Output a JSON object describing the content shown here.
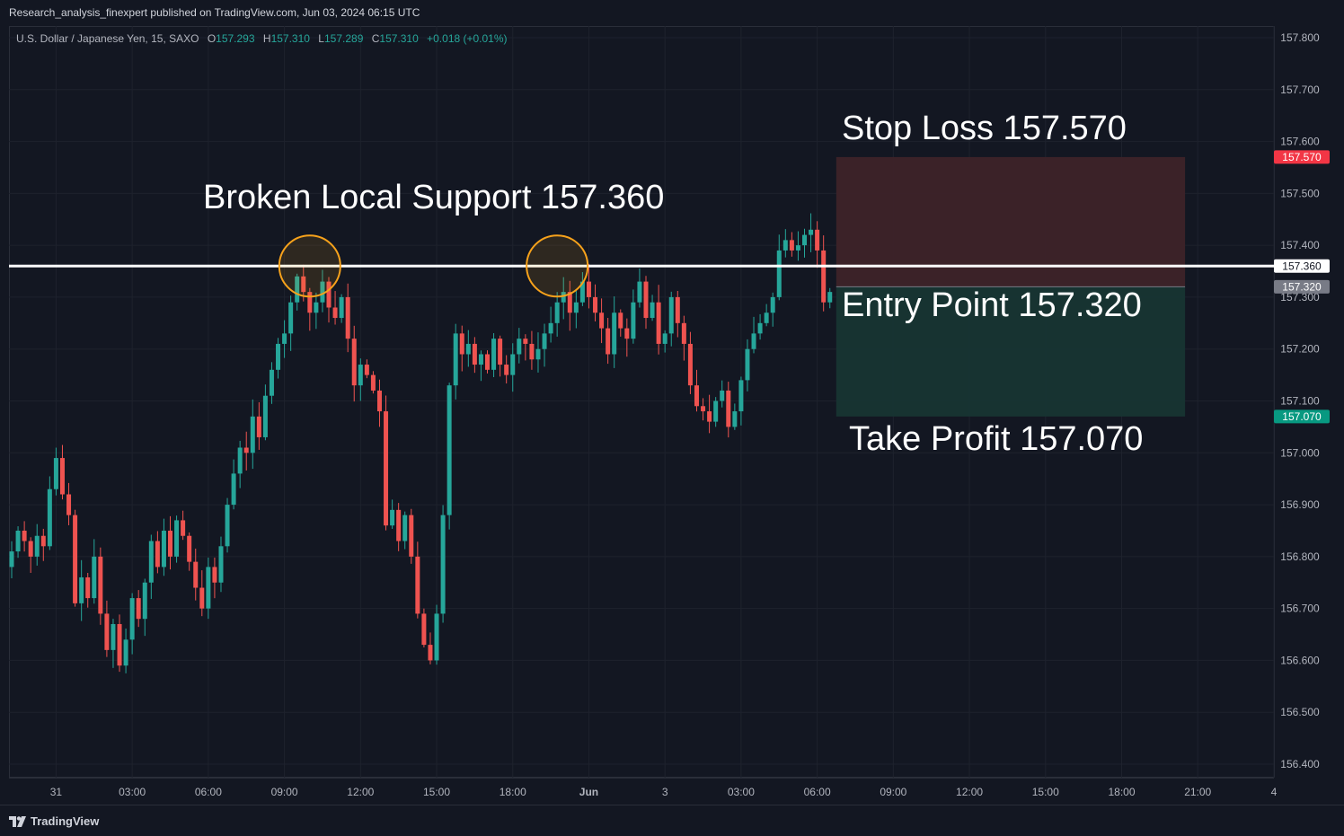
{
  "publisher": "Research_analysis_finexpert published on TradingView.com, Jun 03, 2024 06:15 UTC",
  "brand": "TradingView",
  "legend": {
    "symbol": "U.S. Dollar / Japanese Yen, 15, SAXO",
    "o_label": "O",
    "o": "157.293",
    "h_label": "H",
    "h": "157.310",
    "l_label": "L",
    "l": "157.289",
    "c_label": "C",
    "c": "157.310",
    "change": "+0.018 (+0.01%)"
  },
  "annotations": {
    "support": "Broken Local Support 157.360",
    "stop_loss": "Stop Loss 157.570",
    "entry": "Entry Point 157.320",
    "take_profit": "Take Profit 157.070"
  },
  "colors": {
    "background": "#131722",
    "up": "#26a69a",
    "down": "#ef5350",
    "support_line": "#ffffff",
    "circle": "#f7a21b",
    "stop_zone": "#3d2329",
    "profit_zone": "#173533"
  },
  "chart_data": {
    "type": "candlestick",
    "title": "",
    "y_axis": {
      "min": 156.35,
      "max": 157.84,
      "ticks": [
        "157.800",
        "157.700",
        "157.600",
        "157.500",
        "157.400",
        "157.300",
        "157.200",
        "157.100",
        "157.000",
        "156.900",
        "156.800",
        "156.700",
        "156.600",
        "156.500",
        "156.400"
      ],
      "tick_values": [
        157.8,
        157.7,
        157.6,
        157.5,
        157.4,
        157.3,
        157.2,
        157.1,
        157.0,
        156.9,
        156.8,
        156.7,
        156.6,
        156.5,
        156.4
      ]
    },
    "x_axis": {
      "bar_count": 168,
      "tick_labels": [
        "31",
        "03:00",
        "06:00",
        "09:00",
        "12:00",
        "15:00",
        "18:00",
        "Jun",
        "3",
        "03:00",
        "06:00",
        "09:00",
        "12:00",
        "15:00",
        "18:00",
        "21:00",
        "4"
      ],
      "tick_bar_index": [
        7,
        19,
        31,
        43,
        55,
        67,
        79,
        91,
        103,
        115,
        127,
        139,
        151,
        163,
        175,
        187,
        199
      ],
      "bold_tick": "Jun"
    },
    "price_labels": [
      {
        "text": "157.570",
        "value": 157.57,
        "bg": "#f23645"
      },
      {
        "text": "157.360",
        "value": 157.36,
        "bg": "#ffffff"
      },
      {
        "text": "157.320",
        "value": 157.32,
        "bg": "#787b86"
      },
      {
        "text": "157.070",
        "value": 157.07,
        "bg": "#089981"
      }
    ],
    "support_level": 157.36,
    "position": {
      "stop": 157.57,
      "entry": 157.32,
      "target": 157.07,
      "start_bar": 130,
      "end_bar": 185
    },
    "highlight_circles": [
      {
        "bar": 47,
        "price": 157.36
      },
      {
        "bar": 86,
        "price": 157.36
      }
    ],
    "closes": [
      156.81,
      156.85,
      156.83,
      156.8,
      156.84,
      156.82,
      156.93,
      156.99,
      156.92,
      156.88,
      156.71,
      156.76,
      156.72,
      156.8,
      156.69,
      156.62,
      156.67,
      156.59,
      156.64,
      156.72,
      156.68,
      156.75,
      156.83,
      156.78,
      156.85,
      156.8,
      156.87,
      156.84,
      156.79,
      156.74,
      156.7,
      156.78,
      156.75,
      156.82,
      156.9,
      156.96,
      157.01,
      157.0,
      157.07,
      157.03,
      157.11,
      157.16,
      157.21,
      157.23,
      157.29,
      157.34,
      157.31,
      157.27,
      157.29,
      157.33,
      157.28,
      157.26,
      157.3,
      157.22,
      157.13,
      157.17,
      157.15,
      157.12,
      157.08,
      156.86,
      156.89,
      156.83,
      156.88,
      156.8,
      156.69,
      156.63,
      156.6,
      156.69,
      156.88,
      157.13,
      157.23,
      157.19,
      157.21,
      157.17,
      157.19,
      157.16,
      157.22,
      157.17,
      157.15,
      157.19,
      157.22,
      157.21,
      157.18,
      157.2,
      157.23,
      157.25,
      157.29,
      157.31,
      157.27,
      157.29,
      157.33,
      157.3,
      157.27,
      157.24,
      157.19,
      157.27,
      157.24,
      157.22,
      157.29,
      157.33,
      157.26,
      157.29,
      157.21,
      157.23,
      157.3,
      157.25,
      157.21,
      157.13,
      157.09,
      157.08,
      157.06,
      157.1,
      157.12,
      157.05,
      157.08,
      157.14,
      157.2,
      157.23,
      157.25,
      157.27,
      157.3,
      157.39,
      157.41,
      157.39,
      157.4,
      157.42,
      157.43,
      157.39,
      157.29,
      157.31
    ],
    "window_note": ""
  }
}
